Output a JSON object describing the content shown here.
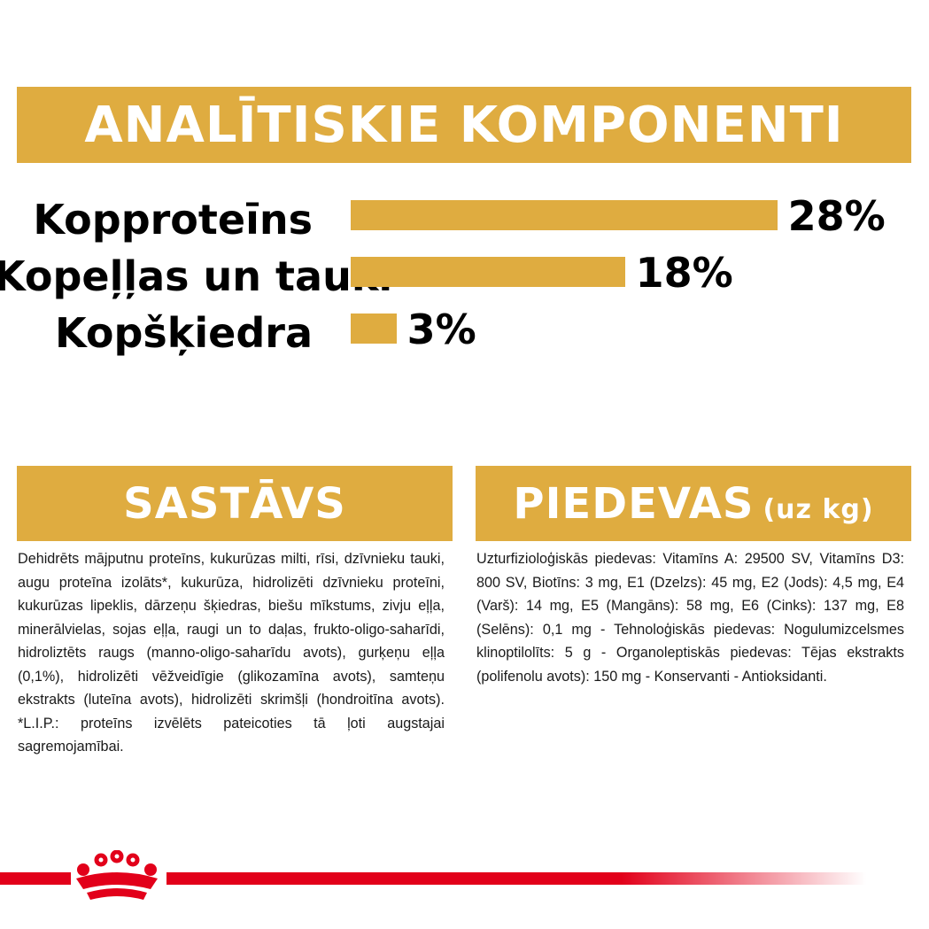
{
  "analytics": {
    "title": "ANALĪTISKIE KOMPONENTI",
    "rows": [
      {
        "label": "Kopproteīns",
        "value": "28%",
        "percent": 28
      },
      {
        "label": "Kopeļļas un tauki",
        "value": "18%",
        "percent": 18
      },
      {
        "label": "Kopšķiedra",
        "value": "3%",
        "percent": 3
      }
    ]
  },
  "composition": {
    "title": "SASTĀVS",
    "text": "Dehidrēts mājputnu proteīns, kukurūzas milti, rīsi, dzīvnieku tauki, augu proteīna izolāts*, kukurūza, hidrolizēti dzīvnieku proteīni, kukurūzas lipeklis, dārzeņu šķiedras, biešu mīkstums, zivju eļļa, minerālvielas, sojas eļļa, raugi un to daļas, frukto-oligo-saharīdi, hidroliztēts raugs (manno-oligo-saharīdu avots), gurķeņu eļļa (0,1%), hidrolizēti vēžveidīgie (glikozamīna avots), samteņu ekstrakts (luteīna avots), hidrolizēti skrimšļi (hondroitīna avots). *L.I.P.: proteīns izvēlēts pateicoties tā ļoti augstajai sagremojamībai."
  },
  "additives": {
    "title": "PIEDEVAS",
    "unit": "(uz kg)",
    "text": "Uzturfizioloģiskās piedevas: Vitamīns A: 29500 SV, Vitamīns D3: 800 SV, Biotīns: 3 mg, E1 (Dzelzs): 45 mg, E2 (Jods): 4,5 mg, E4 (Varš): 14 mg, E5 (Mangāns): 58 mg, E6 (Cinks): 137 mg, E8 (Selēns): 0,1 mg - Tehnoloģiskās piedevas: Nogulumizcelsmes klinoptilolīts: 5 g - Organoleptiskās piedevas: Tējas ekstrakts (polifenolu avots): 150 mg - Konservanti - Antioksidanti."
  },
  "colors": {
    "accent": "#dfac40",
    "brand_red": "#e2001a"
  },
  "logo": {
    "icon": "royal-canin-crown-icon"
  }
}
